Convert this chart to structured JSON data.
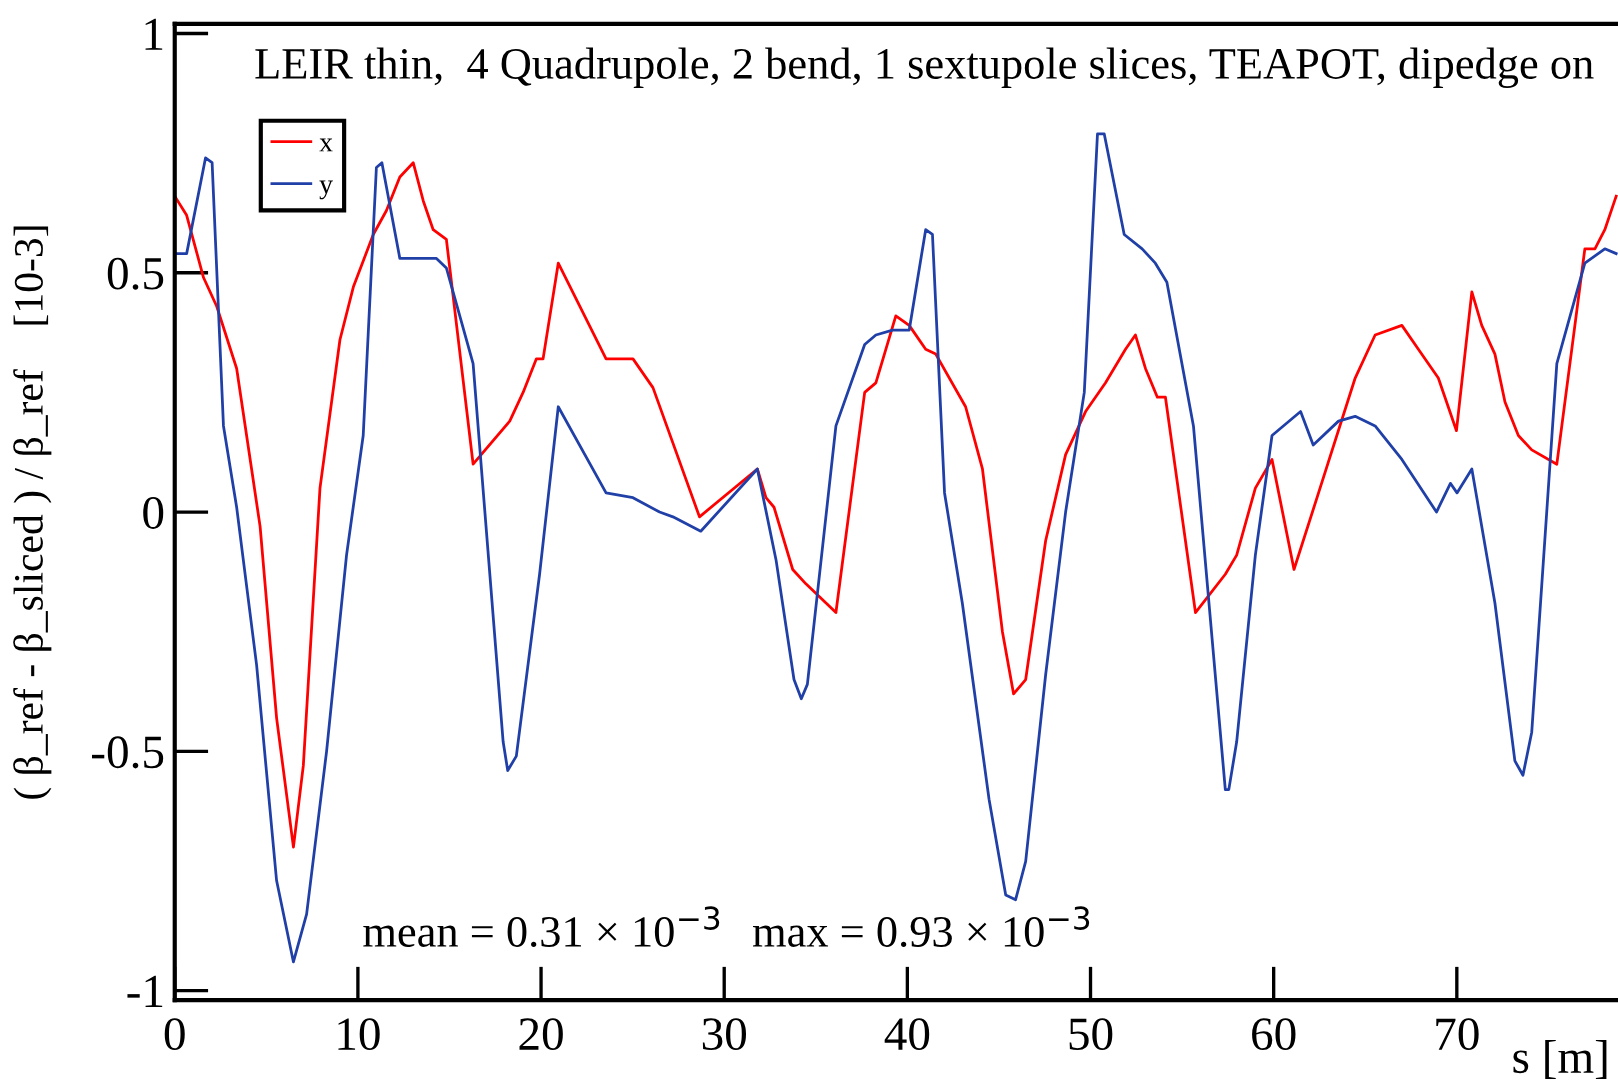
{
  "chart_data": {
    "type": "line",
    "title": "LEIR thin,  4 Quadrupole, 2 bend, 1 sextupole slices, TEAPOT, dipedge on",
    "xlabel": "s [m]",
    "ylabel": "( β_ref - β_sliced ) / β_ref    [10-3]",
    "annotations": [
      "mean = 0.31 × 10$^{−3}$",
      "max = 0.93 × 10$^{−3}$"
    ],
    "series": [
      {
        "name": "x",
        "color": "#ff0000",
        "x": [
          0.0,
          0.65,
          1.57,
          2.29,
          3.38,
          4.66,
          5.56,
          6.48,
          7.02,
          7.93,
          9.02,
          9.75,
          10.84,
          11.56,
          12.29,
          13.02,
          13.57,
          14.11,
          14.83,
          16.29,
          18.29,
          19.02,
          19.74,
          20.11,
          20.94,
          23.55,
          25.02,
          26.11,
          28.65,
          31.81,
          32.28,
          32.72,
          33.74,
          34.46,
          36.1,
          37.67,
          38.28,
          39.37,
          40.1,
          41.0,
          41.55,
          43.18,
          44.1,
          45.19,
          45.8,
          46.46,
          47.55,
          48.64,
          49.73,
          50.82,
          51.91,
          52.45,
          53.0,
          53.65,
          54.09,
          55.73,
          57.36,
          57.98,
          59.0,
          59.91,
          61.11,
          62.45,
          64.45,
          65.54,
          67.0,
          67.9,
          68.99,
          69.98,
          70.82,
          71.36,
          72.08,
          72.63,
          73.36,
          74.09,
          75.46,
          76.99,
          77.54,
          78.08,
          78.7
        ],
        "values": [
          0.66,
          0.62,
          0.49,
          0.43,
          0.3,
          -0.03,
          -0.43,
          -0.7,
          -0.53,
          0.05,
          0.36,
          0.47,
          0.58,
          0.63,
          0.7,
          0.73,
          0.65,
          0.59,
          0.57,
          0.1,
          0.19,
          0.25,
          0.32,
          0.32,
          0.52,
          0.32,
          0.32,
          0.26,
          -0.01,
          0.09,
          0.03,
          0.01,
          -0.12,
          -0.15,
          -0.21,
          0.25,
          0.27,
          0.41,
          0.39,
          0.34,
          0.33,
          0.22,
          0.09,
          -0.25,
          -0.38,
          -0.35,
          -0.06,
          0.12,
          0.21,
          0.27,
          0.34,
          0.37,
          0.3,
          0.24,
          0.24,
          -0.21,
          -0.13,
          -0.09,
          0.05,
          0.11,
          -0.12,
          0.04,
          0.28,
          0.37,
          0.39,
          0.34,
          0.28,
          0.17,
          0.46,
          0.39,
          0.33,
          0.23,
          0.16,
          0.13,
          0.1,
          0.55,
          0.55,
          0.59,
          0.66
        ]
      },
      {
        "name": "y",
        "color": "#2040a8",
        "x": [
          0.0,
          0.65,
          1.68,
          2.04,
          2.66,
          3.38,
          4.47,
          5.56,
          6.48,
          7.2,
          8.29,
          9.38,
          10.29,
          11.01,
          11.31,
          12.29,
          13.57,
          14.29,
          14.83,
          16.29,
          17.93,
          18.18,
          18.65,
          19.92,
          20.94,
          23.55,
          25.02,
          26.47,
          27.2,
          28.72,
          31.81,
          32.83,
          33.81,
          34.21,
          34.54,
          36.1,
          37.67,
          38.28,
          39.19,
          40.1,
          41.0,
          41.37,
          42.03,
          43.0,
          44.46,
          45.37,
          45.91,
          46.46,
          47.55,
          48.64,
          49.66,
          50.38,
          50.75,
          51.84,
          52.82,
          53.54,
          54.17,
          55.62,
          57.36,
          57.55,
          57.98,
          59.0,
          59.91,
          61.47,
          62.16,
          63.54,
          64.45,
          65.54,
          67.0,
          68.89,
          69.65,
          70.01,
          70.82,
          72.08,
          73.17,
          73.61,
          74.09,
          75.46,
          76.99,
          78.08,
          78.7
        ],
        "values": [
          0.54,
          0.54,
          0.74,
          0.73,
          0.18,
          0.01,
          -0.32,
          -0.77,
          -0.94,
          -0.84,
          -0.5,
          -0.09,
          0.16,
          0.72,
          0.73,
          0.53,
          0.53,
          0.53,
          0.51,
          0.31,
          -0.48,
          -0.54,
          -0.51,
          -0.13,
          0.22,
          0.04,
          0.03,
          0.0,
          -0.01,
          -0.04,
          0.09,
          -0.1,
          -0.35,
          -0.39,
          -0.36,
          0.18,
          0.35,
          0.37,
          0.38,
          0.38,
          0.59,
          0.58,
          0.04,
          -0.19,
          -0.6,
          -0.8,
          -0.81,
          -0.73,
          -0.34,
          0.0,
          0.25,
          0.79,
          0.79,
          0.58,
          0.55,
          0.52,
          0.48,
          0.18,
          -0.58,
          -0.58,
          -0.48,
          -0.09,
          0.16,
          0.21,
          0.14,
          0.19,
          0.2,
          0.18,
          0.11,
          0.0,
          0.06,
          0.04,
          0.09,
          -0.19,
          -0.52,
          -0.55,
          -0.46,
          0.31,
          0.52,
          0.55,
          0.54
        ]
      }
    ],
    "xlim": [
      0,
      78.8
    ],
    "ylim": [
      -1.02,
      1.02
    ],
    "xticks": [
      0,
      10,
      20,
      30,
      40,
      50,
      60,
      70
    ],
    "yticks": [
      -1,
      -0.5,
      0,
      0.5,
      1
    ],
    "grid": false,
    "legend": "top left",
    "marker": "none",
    "line_style": "solid"
  }
}
